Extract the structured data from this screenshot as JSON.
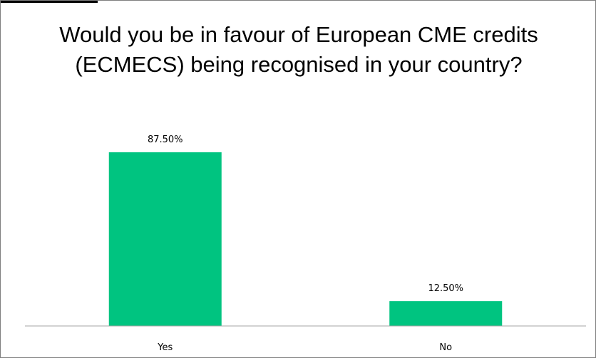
{
  "chart_data": {
    "type": "bar",
    "title": "Would you be in favour of European CME credits (ECMECS) being recognised in your country?",
    "categories": [
      "Yes",
      "No"
    ],
    "values": [
      87.5,
      12.5
    ],
    "value_labels": [
      "87.50%",
      "12.50%"
    ],
    "unit": "%",
    "ylim": [
      0,
      100
    ],
    "bar_color": "#00c480",
    "grid": false,
    "legend": "none"
  }
}
